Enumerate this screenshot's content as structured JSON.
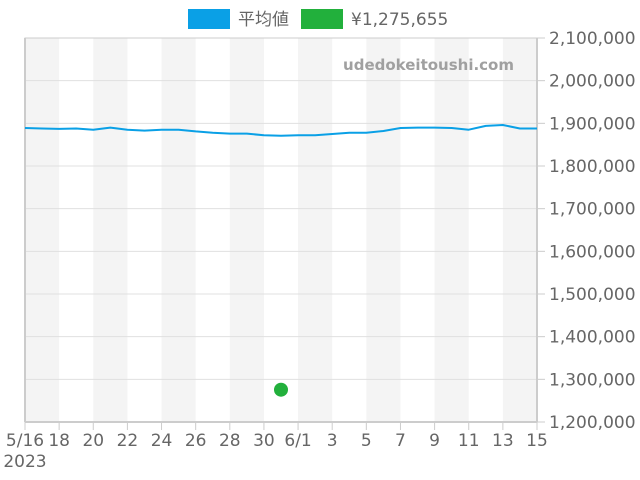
{
  "legend": {
    "items": [
      {
        "label": "平均値",
        "color": "#0aa0e6"
      },
      {
        "label": "¥1,275,655",
        "color": "#22b03c"
      }
    ]
  },
  "watermark": "udedokeitoushi.com",
  "chart_data": {
    "type": "line",
    "title": "",
    "xlabel": "",
    "ylabel": "",
    "ylim": [
      1200000,
      2100000
    ],
    "grid": true,
    "legend_position": "top",
    "x_tick_labels": [
      "5/16",
      "18",
      "20",
      "22",
      "24",
      "26",
      "28",
      "30",
      "6/1",
      "3",
      "5",
      "7",
      "9",
      "11",
      "13",
      "15"
    ],
    "x_tick_sublabel": "2023",
    "y_tick_labels": [
      "2,100,000",
      "2,000,000",
      "1,900,000",
      "1,800,000",
      "1,700,000",
      "1,600,000",
      "1,500,000",
      "1,400,000",
      "1,300,000",
      "1,200,000"
    ],
    "y_ticks": [
      2100000,
      2000000,
      1900000,
      1800000,
      1700000,
      1600000,
      1500000,
      1400000,
      1300000,
      1200000
    ],
    "x": [
      "2023-05-16",
      "2023-05-17",
      "2023-05-18",
      "2023-05-19",
      "2023-05-20",
      "2023-05-21",
      "2023-05-22",
      "2023-05-23",
      "2023-05-24",
      "2023-05-25",
      "2023-05-26",
      "2023-05-27",
      "2023-05-28",
      "2023-05-29",
      "2023-05-30",
      "2023-05-31",
      "2023-06-01",
      "2023-06-02",
      "2023-06-03",
      "2023-06-04",
      "2023-06-05",
      "2023-06-06",
      "2023-06-07",
      "2023-06-08",
      "2023-06-09",
      "2023-06-10",
      "2023-06-11",
      "2023-06-12",
      "2023-06-13",
      "2023-06-14",
      "2023-06-15"
    ],
    "series": [
      {
        "name": "平均値",
        "type": "line",
        "color": "#0aa0e6",
        "values": [
          1889000,
          1888000,
          1887000,
          1888000,
          1885000,
          1890000,
          1885000,
          1883000,
          1885000,
          1885000,
          1881000,
          1878000,
          1876000,
          1876000,
          1872000,
          1871000,
          1872000,
          1872000,
          1875000,
          1878000,
          1878000,
          1882000,
          1889000,
          1890000,
          1890000,
          1889000,
          1885000,
          1894000,
          1896000,
          1888000,
          1888000
        ]
      },
      {
        "name": "¥1,275,655",
        "type": "scatter",
        "color": "#22b03c",
        "points": [
          {
            "x": "2023-05-31",
            "y": 1275655
          }
        ]
      }
    ]
  }
}
